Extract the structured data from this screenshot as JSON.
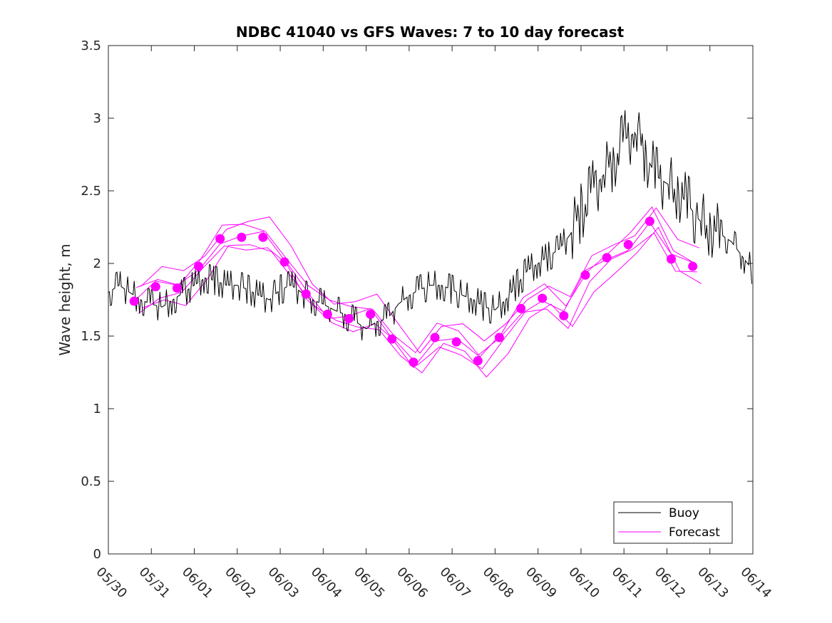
{
  "chart_data": {
    "type": "line",
    "title": "NDBC 41040 vs GFS Waves: 7 to 10 day forecast",
    "ylabel": "Wave height, m",
    "xlabel": "",
    "ylim": [
      0,
      3.5
    ],
    "yticks": [
      0,
      0.5,
      1,
      1.5,
      2,
      2.5,
      3,
      3.5
    ],
    "ytick_labels": [
      "0",
      "0.5",
      "1",
      "1.5",
      "2",
      "2.5",
      "3",
      "3.5"
    ],
    "xlim": [
      0,
      15
    ],
    "xtick_labels": [
      "05/30",
      "05/31",
      "06/01",
      "06/02",
      "06/03",
      "06/04",
      "06/05",
      "06/06",
      "06/07",
      "06/08",
      "06/09",
      "06/10",
      "06/11",
      "06/12",
      "06/13",
      "06/14"
    ],
    "colors": {
      "buoy": "#000000",
      "forecast": "#ff00ff"
    },
    "legend": {
      "position": "bottom-right",
      "entries": [
        {
          "label": "Buoy",
          "color": "#000000"
        },
        {
          "label": "Forecast",
          "color": "#ff00ff"
        }
      ]
    },
    "series": [
      {
        "name": "Buoy",
        "color": "#000000",
        "x": [
          0,
          0.25,
          0.5,
          0.75,
          1.0,
          1.25,
          1.5,
          1.75,
          2.0,
          2.25,
          2.5,
          2.75,
          3.0,
          3.25,
          3.5,
          3.75,
          4.0,
          4.25,
          4.5,
          4.75,
          5.0,
          5.25,
          5.5,
          5.75,
          6.0,
          6.25,
          6.5,
          6.75,
          7.0,
          7.25,
          7.5,
          7.75,
          8.0,
          8.25,
          8.5,
          8.75,
          9.0,
          9.25,
          9.5,
          9.75,
          10.0,
          10.25,
          10.5,
          10.75,
          11.0,
          11.25,
          11.5,
          11.75,
          12.0,
          12.25,
          12.5,
          12.75,
          13.0,
          13.25,
          13.5,
          13.75,
          14.0,
          14.25,
          14.5,
          14.75,
          15.0
        ],
        "y": [
          1.8,
          1.85,
          1.8,
          1.75,
          1.72,
          1.7,
          1.75,
          1.8,
          1.85,
          1.9,
          1.88,
          1.85,
          1.85,
          1.82,
          1.78,
          1.75,
          1.82,
          1.85,
          1.8,
          1.75,
          1.72,
          1.68,
          1.65,
          1.6,
          1.55,
          1.6,
          1.62,
          1.72,
          1.78,
          1.82,
          1.85,
          1.85,
          1.82,
          1.78,
          1.75,
          1.7,
          1.68,
          1.75,
          1.85,
          1.95,
          2.0,
          2.05,
          2.1,
          2.2,
          2.35,
          2.5,
          2.6,
          2.7,
          2.85,
          2.9,
          2.75,
          2.6,
          2.55,
          2.5,
          2.4,
          2.3,
          2.25,
          2.2,
          2.15,
          2.05,
          1.95
        ]
      },
      {
        "name": "Forecast",
        "color": "#ff00ff",
        "x": [
          0.6,
          1.1,
          1.6,
          2.1,
          2.6,
          3.1,
          3.6,
          4.1,
          4.6,
          5.1,
          5.6,
          6.1,
          6.6,
          7.1,
          7.6,
          8.1,
          8.6,
          9.1,
          9.6,
          10.1,
          10.6,
          11.1,
          11.6,
          12.1,
          12.6,
          13.1,
          13.6
        ],
        "y": [
          1.74,
          1.84,
          1.83,
          1.98,
          2.17,
          2.18,
          2.18,
          2.01,
          1.79,
          1.65,
          1.62,
          1.65,
          1.48,
          1.32,
          1.49,
          1.46,
          1.33,
          1.49,
          1.69,
          1.76,
          1.64,
          1.92,
          2.04,
          2.13,
          2.29,
          2.03,
          1.98
        ]
      }
    ]
  }
}
